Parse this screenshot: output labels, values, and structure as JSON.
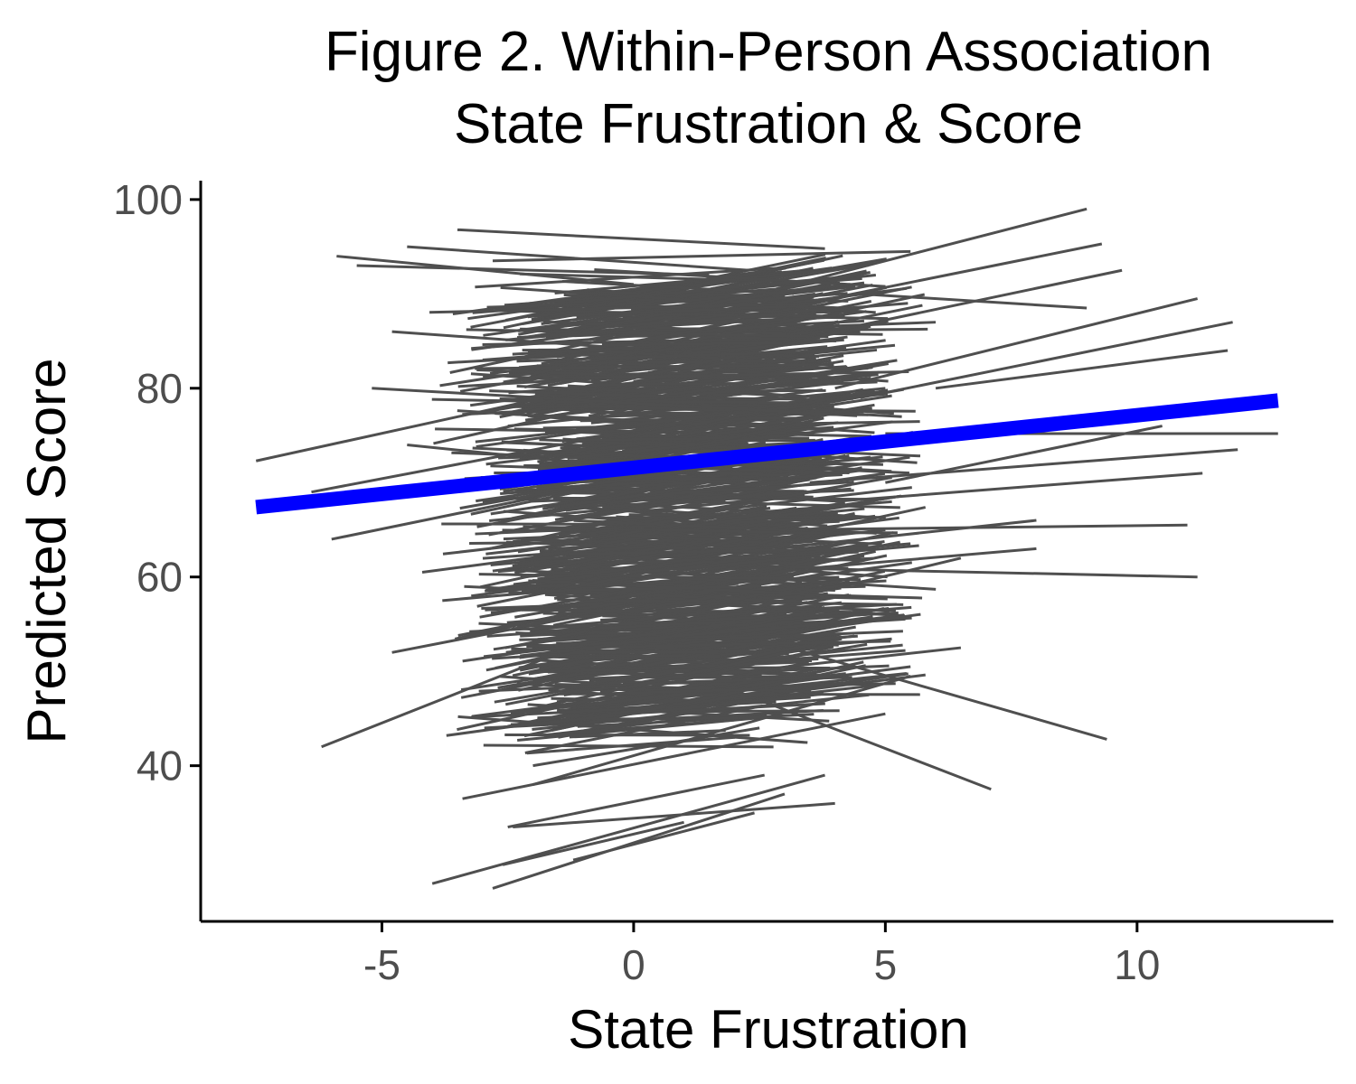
{
  "chart_data": {
    "type": "line",
    "title_lines": [
      "Figure 2. Within-Person Association",
      "State Frustration & Score"
    ],
    "xlabel": "State Frustration",
    "ylabel": "Predicted Score",
    "xlim": [
      -8.6,
      13.9
    ],
    "ylim": [
      23.5,
      102
    ],
    "x_ticks": [
      -5,
      0,
      5,
      10
    ],
    "x_tick_labels": [
      "-5",
      "0",
      "5",
      "10"
    ],
    "y_ticks": [
      40,
      60,
      80,
      100
    ],
    "y_tick_labels": [
      "40",
      "60",
      "80",
      "100"
    ],
    "grid": false,
    "legend": "none",
    "colors": {
      "person_lines": "#4f4f4f",
      "fixed_effect": "#0000ff",
      "axis": "#000000",
      "tick_label": "#4d4d4d"
    },
    "fixed_effect": {
      "x": [
        -7.5,
        12.8
      ],
      "y": [
        67.4,
        78.7
      ]
    },
    "person_lines": [
      {
        "x": [
          -4.0,
          3.8
        ],
        "y": [
          27.5,
          39.0
        ]
      },
      {
        "x": [
          -2.8,
          3.0
        ],
        "y": [
          27.0,
          37.0
        ]
      },
      {
        "x": [
          -2.4,
          4.0
        ],
        "y": [
          33.5,
          36.0
        ]
      },
      {
        "x": [
          -2.5,
          2.6
        ],
        "y": [
          33.5,
          39.0
        ]
      },
      {
        "x": [
          -1.2,
          2.4
        ],
        "y": [
          30.0,
          35.0
        ]
      },
      {
        "x": [
          -2.6,
          1.0
        ],
        "y": [
          29.5,
          34.0
        ]
      },
      {
        "x": [
          -6.2,
          0.2
        ],
        "y": [
          42.0,
          55.5
        ]
      },
      {
        "x": [
          -3.4,
          5.0
        ],
        "y": [
          36.5,
          45.5
        ]
      },
      {
        "x": [
          -2.0,
          5.5
        ],
        "y": [
          38.0,
          49.5
        ]
      },
      {
        "x": [
          2.0,
          7.1
        ],
        "y": [
          48.0,
          37.5
        ]
      },
      {
        "x": [
          0.8,
          9.4
        ],
        "y": [
          56.0,
          42.8
        ]
      },
      {
        "x": [
          -7.5,
          0.8
        ],
        "y": [
          72.3,
          82.0
        ]
      },
      {
        "x": [
          -6.4,
          0.5
        ],
        "y": [
          69.0,
          76.0
        ]
      },
      {
        "x": [
          -6.0,
          -0.5
        ],
        "y": [
          64.0,
          70.0
        ]
      },
      {
        "x": [
          -4.8,
          1.0
        ],
        "y": [
          52.0,
          58.0
        ]
      },
      {
        "x": [
          -5.2,
          1.5
        ],
        "y": [
          80.0,
          78.0
        ]
      },
      {
        "x": [
          -5.9,
          0.0
        ],
        "y": [
          94.0,
          91.0
        ]
      },
      {
        "x": [
          -3.5,
          3.8
        ],
        "y": [
          96.8,
          94.8
        ]
      },
      {
        "x": [
          -4.5,
          2.3
        ],
        "y": [
          95.0,
          92.5
        ]
      },
      {
        "x": [
          -5.5,
          1.5
        ],
        "y": [
          93.0,
          92.0
        ]
      },
      {
        "x": [
          -2.8,
          5.5
        ],
        "y": [
          93.5,
          94.5
        ]
      },
      {
        "x": [
          1.0,
          9.0
        ],
        "y": [
          88.0,
          99.0
        ]
      },
      {
        "x": [
          2.5,
          9.3
        ],
        "y": [
          88.0,
          95.3
        ]
      },
      {
        "x": [
          3.0,
          9.7
        ],
        "y": [
          85.0,
          92.5
        ]
      },
      {
        "x": [
          4.0,
          11.2
        ],
        "y": [
          80.0,
          89.5
        ]
      },
      {
        "x": [
          4.5,
          11.9
        ],
        "y": [
          79.0,
          87.0
        ]
      },
      {
        "x": [
          5.0,
          12.8
        ],
        "y": [
          75.2,
          75.2
        ]
      },
      {
        "x": [
          3.5,
          12.0
        ],
        "y": [
          70.0,
          73.5
        ]
      },
      {
        "x": [
          4.0,
          11.3
        ],
        "y": [
          68.0,
          71.0
        ]
      },
      {
        "x": [
          3.0,
          11.0
        ],
        "y": [
          65.0,
          65.5
        ]
      },
      {
        "x": [
          2.5,
          11.2
        ],
        "y": [
          61.0,
          60.0
        ]
      },
      {
        "x": [
          2.8,
          8.0
        ],
        "y": [
          63.0,
          66.0
        ]
      },
      {
        "x": [
          1.5,
          8.0
        ],
        "y": [
          60.0,
          63.0
        ]
      },
      {
        "x": [
          1.0,
          6.5
        ],
        "y": [
          55.0,
          62.0
        ]
      },
      {
        "x": [
          0.5,
          6.5
        ],
        "y": [
          49.0,
          52.5
        ]
      },
      {
        "x": [
          -1.0,
          5.5
        ],
        "y": [
          46.0,
          50.5
        ]
      },
      {
        "x": [
          5.0,
          10.5
        ],
        "y": [
          70.0,
          76.0
        ]
      },
      {
        "x": [
          6.0,
          11.8
        ],
        "y": [
          80.0,
          84.0
        ]
      },
      {
        "x": [
          4.5,
          9.0
        ],
        "y": [
          90.0,
          88.5
        ]
      },
      {
        "x": [
          -1.5,
          6.0
        ],
        "y": [
          85.5,
          87.0
        ]
      },
      {
        "x": [
          -3.0,
          4.5
        ],
        "y": [
          83.0,
          86.0
        ]
      },
      {
        "x": [
          -2.5,
          5.0
        ],
        "y": [
          76.0,
          80.0
        ]
      },
      {
        "x": [
          -3.0,
          4.0
        ],
        "y": [
          68.0,
          72.0
        ]
      },
      {
        "x": [
          -2.0,
          5.0
        ],
        "y": [
          61.0,
          65.0
        ]
      },
      {
        "x": [
          -2.5,
          3.5
        ],
        "y": [
          55.0,
          58.5
        ]
      },
      {
        "x": [
          -1.5,
          3.0
        ],
        "y": [
          43.0,
          47.5
        ]
      },
      {
        "x": [
          -2.0,
          2.5
        ],
        "y": [
          40.0,
          44.0
        ]
      },
      {
        "x": [
          -3.2,
          2.8
        ],
        "y": [
          88.0,
          90.5
        ]
      },
      {
        "x": [
          -4.8,
          0.5
        ],
        "y": [
          86.0,
          84.0
        ]
      },
      {
        "x": [
          -4.5,
          1.0
        ],
        "y": [
          74.0,
          71.0
        ]
      },
      {
        "x": [
          -4.2,
          0.8
        ],
        "y": [
          60.5,
          64.0
        ]
      },
      {
        "x": [
          -3.8,
          1.5
        ],
        "y": [
          57.5,
          60.0
        ]
      }
    ]
  }
}
